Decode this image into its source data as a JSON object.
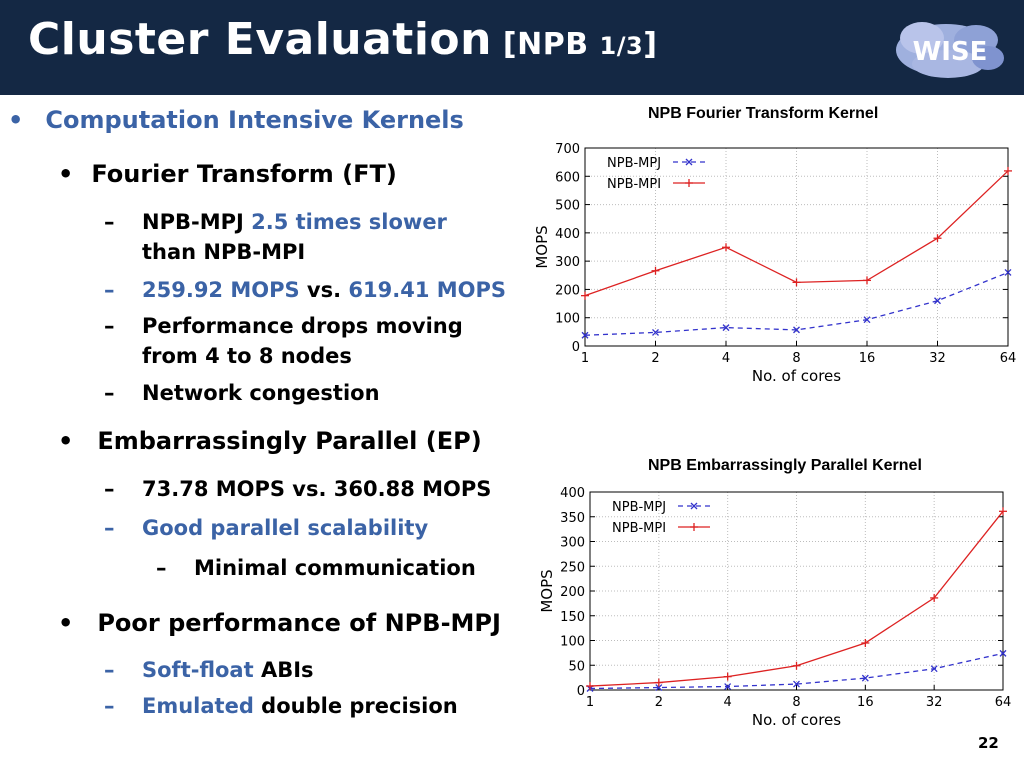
{
  "slide": {
    "title_main": "Cluster Evaluation",
    "title_bracket_open": " [NPB ",
    "title_fraction": "1/3",
    "title_bracket_close": "]",
    "logo_text": "WISE",
    "page_number": "22"
  },
  "colors": {
    "header_bg": "#142844",
    "accent_blue": "#3b63a6",
    "mpj": "#3333cc",
    "mpi": "#dd2222"
  },
  "bullets": {
    "b1": "Computation Intensive Kernels",
    "ft": {
      "label": "Fourier Transform",
      "paren": " (FT)"
    },
    "ft_1": {
      "a": "NPB-MPJ ",
      "b": "2.5 times slower",
      "c": "than NPB-MPI"
    },
    "ft_2": {
      "a": "259.92 MOPS",
      "b": " vs. ",
      "c": "619.41 MOPS"
    },
    "ft_3": {
      "a": "Performance drops moving",
      "b": "from 4 to 8 nodes"
    },
    "ft_4": "Network congestion",
    "ep": "Embarrassingly Parallel (EP)",
    "ep_1": "73.78 MOPS vs. 360.88 MOPS",
    "ep_2": "Good parallel scalability",
    "ep_2_1": "Minimal communication",
    "poor": "Poor performance of NPB-MPJ",
    "poor_1": {
      "a": "Soft-float",
      "b": " ABIs"
    },
    "poor_2": {
      "a": "Emulated",
      "b": " double precision"
    }
  },
  "chart_data": [
    {
      "type": "line",
      "title": "NPB Fourier Transform Kernel",
      "xlabel": "No. of cores",
      "ylabel": "MOPS",
      "categories": [
        "1",
        "2",
        "4",
        "8",
        "16",
        "32",
        "64"
      ],
      "ylim": [
        0,
        700
      ],
      "yticks": [
        0,
        100,
        200,
        300,
        400,
        500,
        600,
        700
      ],
      "grid": true,
      "legend": "top-left",
      "series": [
        {
          "name": "NPB-MPJ",
          "marker": "x",
          "style": "dashed",
          "color": "#3333cc",
          "values": [
            38,
            48,
            65,
            57,
            93,
            160,
            260
          ]
        },
        {
          "name": "NPB-MPI",
          "marker": "+",
          "style": "solid",
          "color": "#dd2222",
          "values": [
            178,
            266,
            349,
            225,
            232,
            381,
            619
          ]
        }
      ]
    },
    {
      "type": "line",
      "title": "NPB Embarrassingly Parallel Kernel",
      "xlabel": "No. of cores",
      "ylabel": "MOPS",
      "categories": [
        "1",
        "2",
        "4",
        "8",
        "16",
        "32",
        "64"
      ],
      "ylim": [
        0,
        400
      ],
      "yticks": [
        0,
        50,
        100,
        150,
        200,
        250,
        300,
        350,
        400
      ],
      "grid": true,
      "legend": "top-left",
      "series": [
        {
          "name": "NPB-MPJ",
          "marker": "x",
          "style": "dashed",
          "color": "#3333cc",
          "values": [
            3,
            5,
            7,
            12,
            24,
            43,
            74
          ]
        },
        {
          "name": "NPB-MPI",
          "marker": "+",
          "style": "solid",
          "color": "#dd2222",
          "values": [
            8,
            15,
            27,
            49,
            95,
            186,
            361
          ]
        }
      ]
    }
  ]
}
